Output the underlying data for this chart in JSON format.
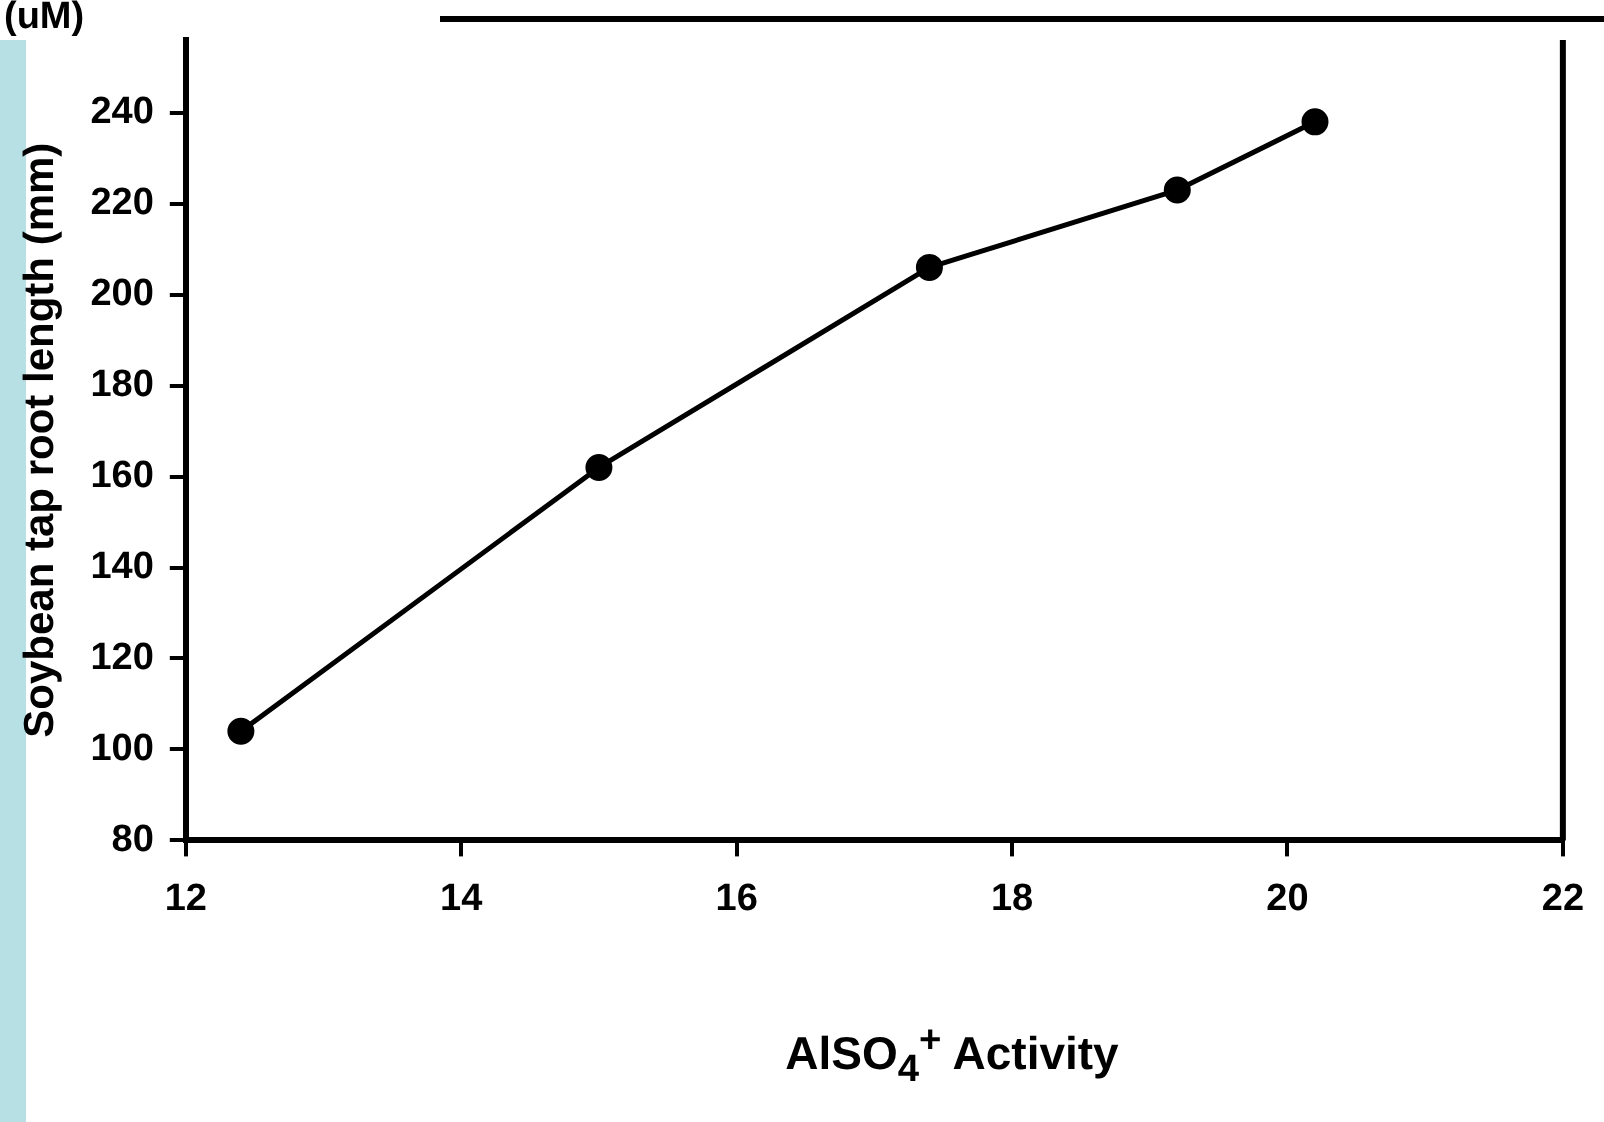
{
  "chart_data": {
    "type": "line",
    "xlabel": "AlSO$_{4}$$^{+}$ Activity",
    "ylabel": "Soybean tap root length (mm)",
    "annotations": [
      "(uM)"
    ],
    "x": [
      12.4,
      15,
      17.4,
      19.2,
      20.2
    ],
    "series": [
      {
        "color": "#000000",
        "values": [
          104,
          162,
          206,
          223,
          238
        ]
      }
    ],
    "xlim": [
      12,
      22
    ],
    "xticks": [
      12,
      14,
      16,
      18,
      20,
      22
    ],
    "ylim": [
      80,
      256
    ],
    "yticks": [
      80,
      100,
      120,
      140,
      160,
      180,
      200,
      220,
      240
    ],
    "grid": false,
    "legend": false,
    "marker": "circle",
    "line_style": "solid"
  }
}
